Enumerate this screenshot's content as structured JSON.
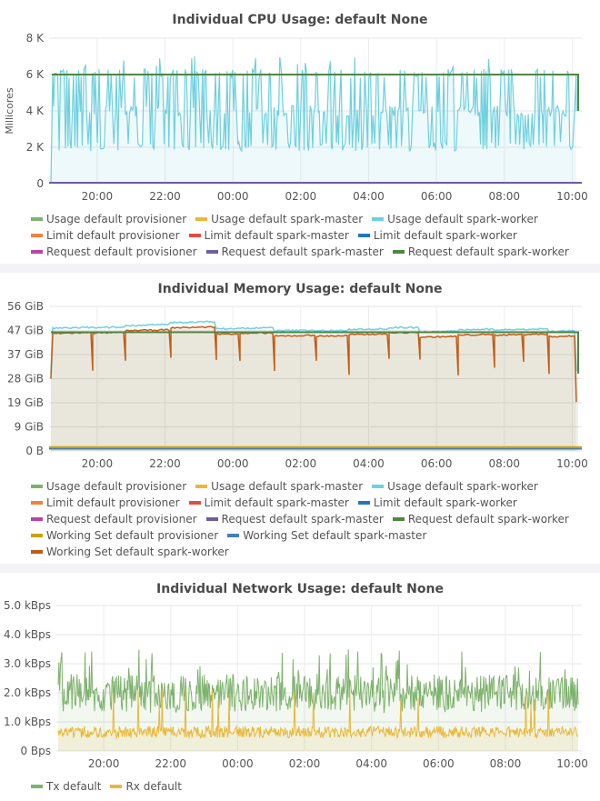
{
  "chart_data": [
    {
      "type": "line",
      "title": "Individual CPU Usage: default None",
      "ylabel": "Millicores",
      "ylim": [
        0,
        8000
      ],
      "yticks": [
        "0",
        "2 K",
        "4 K",
        "6 K",
        "8 K"
      ],
      "xticks": [
        "20:00",
        "22:00",
        "00:00",
        "02:00",
        "04:00",
        "06:00",
        "08:00",
        "10:00"
      ],
      "x_range": [
        "18:35",
        "10:17"
      ],
      "grid": true,
      "legend": "bottom",
      "series": [
        {
          "name": "Usage default provisioner",
          "color": "#7eb26d",
          "values": [
            0
          ]
        },
        {
          "name": "Usage default spark-master",
          "color": "#eab839",
          "values": [
            0
          ]
        },
        {
          "name": "Usage default spark-worker",
          "color": "#6ed0e0",
          "range": [
            1800,
            7000
          ],
          "typical": [
            2000,
            4000,
            6000
          ]
        },
        {
          "name": "Limit default provisioner",
          "color": "#ef843c",
          "values": [
            0
          ]
        },
        {
          "name": "Limit default spark-master",
          "color": "#e24d42",
          "values": [
            0
          ]
        },
        {
          "name": "Limit default spark-worker",
          "color": "#1f78c1",
          "values": [
            0
          ]
        },
        {
          "name": "Request default provisioner",
          "color": "#ba43a9",
          "values": [
            0
          ]
        },
        {
          "name": "Request default spark-master",
          "color": "#705da0",
          "values": [
            0
          ]
        },
        {
          "name": "Request default spark-worker",
          "color": "#508642",
          "values": [
            6000
          ]
        }
      ]
    },
    {
      "type": "line",
      "title": "Individual Memory Usage: default None",
      "ylim": [
        0,
        56
      ],
      "yticks": [
        "0 B",
        "9 GiB",
        "19 GiB",
        "28 GiB",
        "37 GiB",
        "47 GiB",
        "56 GiB"
      ],
      "xticks": [
        "20:00",
        "22:00",
        "00:00",
        "02:00",
        "04:00",
        "06:00",
        "08:00",
        "10:00"
      ],
      "x_range": [
        "18:35",
        "10:17"
      ],
      "grid": true,
      "legend": "bottom",
      "series": [
        {
          "name": "Usage default provisioner",
          "color": "#7eb26d",
          "values": [
            1
          ]
        },
        {
          "name": "Usage default spark-master",
          "color": "#eab839",
          "values": [
            1
          ]
        },
        {
          "name": "Usage default spark-worker",
          "color": "#6ed0e0",
          "range": [
            44,
            53
          ]
        },
        {
          "name": "Limit default provisioner",
          "color": "#ef843c",
          "values": [
            0
          ]
        },
        {
          "name": "Limit default spark-master",
          "color": "#e24d42",
          "values": [
            0
          ]
        },
        {
          "name": "Limit default spark-worker",
          "color": "#1f78c1",
          "values": [
            0
          ]
        },
        {
          "name": "Request default provisioner",
          "color": "#ba43a9",
          "values": [
            0
          ]
        },
        {
          "name": "Request default spark-master",
          "color": "#705da0",
          "values": [
            0
          ]
        },
        {
          "name": "Request default spark-worker",
          "color": "#508642",
          "values": [
            46
          ]
        },
        {
          "name": "Working Set default provisioner",
          "color": "#cca300",
          "values": [
            1
          ]
        },
        {
          "name": "Working Set default spark-master",
          "color": "#447ebc",
          "values": [
            1
          ]
        },
        {
          "name": "Working Set default spark-worker",
          "color": "#c15c17",
          "range": [
            28,
            48
          ]
        }
      ]
    },
    {
      "type": "line",
      "title": "Individual Network Usage: default None",
      "ylim": [
        0,
        5000
      ],
      "yticks": [
        "0 Bps",
        "1.0 kBps",
        "2.0 kBps",
        "3.0 kBps",
        "4.0 kBps",
        "5.0 kBps"
      ],
      "xticks": [
        "20:00",
        "22:00",
        "00:00",
        "02:00",
        "04:00",
        "06:00",
        "08:00",
        "10:00"
      ],
      "x_range": [
        "18:35",
        "10:17"
      ],
      "grid": true,
      "legend": "bottom",
      "series": [
        {
          "name": "Tx default",
          "color": "#7eb26d",
          "range": [
            1300,
            3500
          ],
          "typical": 2000
        },
        {
          "name": "Rx default",
          "color": "#eab839",
          "range": [
            400,
            2200
          ],
          "typical": 650
        }
      ]
    }
  ]
}
